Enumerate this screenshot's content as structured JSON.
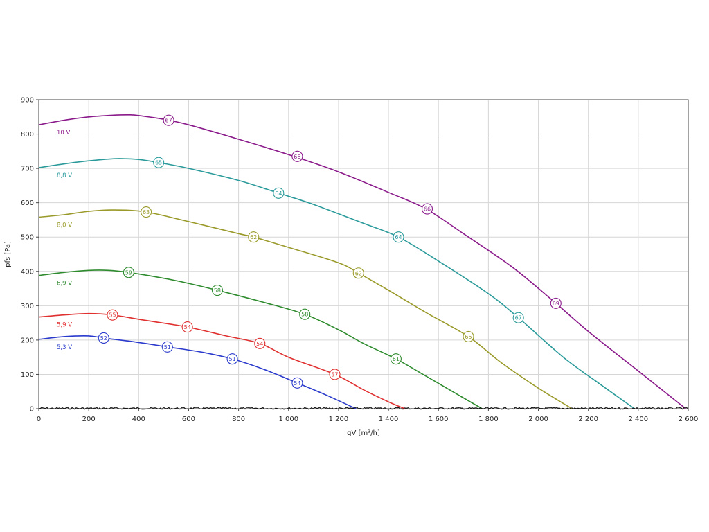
{
  "chart_data": {
    "type": "line",
    "xlabel": "qV [m³/h]",
    "ylabel": "pfs [Pa]",
    "xlim": [
      0,
      2600
    ],
    "ylim": [
      0,
      900
    ],
    "x_ticks": [
      0,
      200,
      400,
      600,
      800,
      1000,
      1200,
      1400,
      1600,
      1800,
      2000,
      2200,
      2400,
      2600
    ],
    "x_tick_labels": [
      "0",
      "200",
      "400",
      "600",
      "800",
      "1 000",
      "1 200",
      "1 400",
      "1 600",
      "1 800",
      "2 000",
      "2 200",
      "2 400",
      "2 600"
    ],
    "y_ticks": [
      0,
      100,
      200,
      300,
      400,
      500,
      600,
      700,
      800,
      900
    ],
    "y_tick_labels": [
      "0",
      "100",
      "200",
      "300",
      "400",
      "500",
      "600",
      "700",
      "800",
      "900"
    ],
    "grid": true,
    "series": [
      {
        "name": "10 V",
        "color": "#8b1a8b",
        "points": [
          [
            0,
            827
          ],
          [
            100,
            840
          ],
          [
            200,
            850
          ],
          [
            300,
            855
          ],
          [
            360,
            856
          ],
          [
            400,
            854
          ],
          [
            500,
            843
          ],
          [
            600,
            827
          ],
          [
            800,
            785
          ],
          [
            1000,
            740
          ],
          [
            1200,
            690
          ],
          [
            1400,
            630
          ],
          [
            1550,
            582
          ],
          [
            1700,
            510
          ],
          [
            1900,
            410
          ],
          [
            2070,
            307
          ],
          [
            2200,
            225
          ],
          [
            2400,
            110
          ],
          [
            2590,
            0
          ]
        ],
        "markers": [
          {
            "x": 520,
            "y": 840,
            "label": "67"
          },
          {
            "x": 1035,
            "y": 735,
            "label": "66"
          },
          {
            "x": 1555,
            "y": 582,
            "label": "66"
          },
          {
            "x": 2070,
            "y": 307,
            "label": "69"
          }
        ]
      },
      {
        "name": "8,8 V",
        "color": "#2a9a9a",
        "points": [
          [
            0,
            702
          ],
          [
            100,
            713
          ],
          [
            200,
            722
          ],
          [
            300,
            728
          ],
          [
            350,
            728
          ],
          [
            400,
            726
          ],
          [
            480,
            717
          ],
          [
            600,
            700
          ],
          [
            800,
            665
          ],
          [
            960,
            628
          ],
          [
            1100,
            595
          ],
          [
            1300,
            540
          ],
          [
            1440,
            500
          ],
          [
            1600,
            430
          ],
          [
            1800,
            335
          ],
          [
            1920,
            265
          ],
          [
            2100,
            150
          ],
          [
            2250,
            70
          ],
          [
            2385,
            0
          ]
        ],
        "markers": [
          {
            "x": 480,
            "y": 717,
            "label": "65"
          },
          {
            "x": 960,
            "y": 628,
            "label": "64"
          },
          {
            "x": 1440,
            "y": 500,
            "label": "64"
          },
          {
            "x": 1920,
            "y": 265,
            "label": "67"
          }
        ]
      },
      {
        "name": "8,0 V",
        "color": "#9a9a2a",
        "points": [
          [
            0,
            558
          ],
          [
            100,
            565
          ],
          [
            200,
            575
          ],
          [
            300,
            579
          ],
          [
            430,
            573
          ],
          [
            600,
            545
          ],
          [
            800,
            510
          ],
          [
            860,
            500
          ],
          [
            1000,
            470
          ],
          [
            1200,
            425
          ],
          [
            1280,
            395
          ],
          [
            1400,
            345
          ],
          [
            1550,
            280
          ],
          [
            1720,
            210
          ],
          [
            1850,
            135
          ],
          [
            2000,
            60
          ],
          [
            2135,
            0
          ]
        ],
        "markers": [
          {
            "x": 430,
            "y": 573,
            "label": "63"
          },
          {
            "x": 860,
            "y": 500,
            "label": "62"
          },
          {
            "x": 1280,
            "y": 395,
            "label": "62"
          },
          {
            "x": 1720,
            "y": 210,
            "label": "65"
          }
        ]
      },
      {
        "name": "6,9 V",
        "color": "#2e8b2e",
        "points": [
          [
            0,
            388
          ],
          [
            100,
            397
          ],
          [
            200,
            403
          ],
          [
            280,
            403
          ],
          [
            360,
            397
          ],
          [
            500,
            380
          ],
          [
            600,
            365
          ],
          [
            715,
            345
          ],
          [
            900,
            310
          ],
          [
            1065,
            275
          ],
          [
            1200,
            230
          ],
          [
            1300,
            190
          ],
          [
            1430,
            145
          ],
          [
            1550,
            95
          ],
          [
            1680,
            40
          ],
          [
            1775,
            0
          ]
        ],
        "markers": [
          {
            "x": 360,
            "y": 397,
            "label": "59"
          },
          {
            "x": 715,
            "y": 345,
            "label": "58"
          },
          {
            "x": 1065,
            "y": 275,
            "label": "58"
          },
          {
            "x": 1430,
            "y": 145,
            "label": "61"
          }
        ]
      },
      {
        "name": "5,9 V",
        "color": "#e03030",
        "points": [
          [
            0,
            267
          ],
          [
            100,
            273
          ],
          [
            200,
            277
          ],
          [
            295,
            273
          ],
          [
            420,
            258
          ],
          [
            595,
            238
          ],
          [
            750,
            212
          ],
          [
            885,
            190
          ],
          [
            1000,
            150
          ],
          [
            1185,
            100
          ],
          [
            1300,
            55
          ],
          [
            1400,
            20
          ],
          [
            1465,
            0
          ]
        ],
        "markers": [
          {
            "x": 295,
            "y": 273,
            "label": "55"
          },
          {
            "x": 595,
            "y": 238,
            "label": "54"
          },
          {
            "x": 885,
            "y": 190,
            "label": "54"
          },
          {
            "x": 1185,
            "y": 100,
            "label": "57"
          }
        ]
      },
      {
        "name": "5,3 V",
        "color": "#2a3acc",
        "points": [
          [
            0,
            202
          ],
          [
            100,
            210
          ],
          [
            200,
            212
          ],
          [
            260,
            206
          ],
          [
            400,
            193
          ],
          [
            515,
            180
          ],
          [
            650,
            165
          ],
          [
            775,
            145
          ],
          [
            900,
            115
          ],
          [
            1035,
            75
          ],
          [
            1150,
            40
          ],
          [
            1270,
            0
          ]
        ],
        "markers": [
          {
            "x": 260,
            "y": 206,
            "label": "52"
          },
          {
            "x": 515,
            "y": 180,
            "label": "51"
          },
          {
            "x": 775,
            "y": 145,
            "label": "51"
          },
          {
            "x": 1035,
            "y": 75,
            "label": "54"
          }
        ]
      }
    ]
  }
}
